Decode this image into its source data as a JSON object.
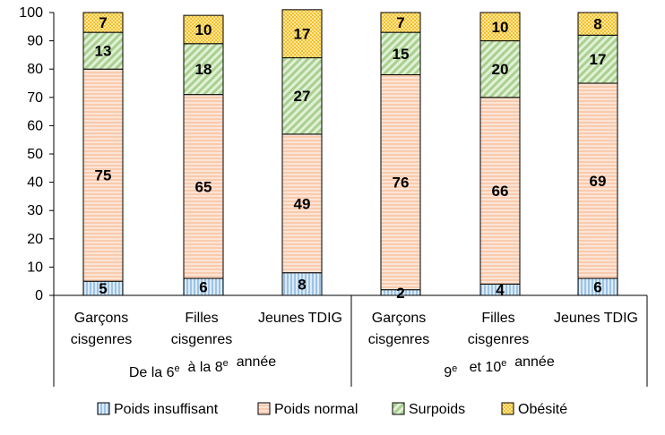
{
  "chart_data": {
    "type": "bar",
    "stacked": true,
    "ylim": [
      0,
      100
    ],
    "yticks": [
      0,
      10,
      20,
      30,
      40,
      50,
      60,
      70,
      80,
      90,
      100
    ],
    "grid": false,
    "legend_position": "bottom",
    "categories": [
      [
        "Garçons",
        "cisgenres"
      ],
      [
        "Filles",
        "cisgenres"
      ],
      [
        "Jeunes TDIG"
      ],
      [
        "Garçons",
        "cisgenres"
      ],
      [
        "Filles",
        "cisgenres"
      ],
      [
        "Jeunes TDIG"
      ]
    ],
    "groups": [
      {
        "label": "De la 6e à la 8e année",
        "parts": [
          [
            "De la 6",
            ""
          ],
          [
            "e",
            "sup"
          ],
          [
            "  à la 8",
            ""
          ],
          [
            "e",
            "sup"
          ],
          [
            "  année",
            ""
          ]
        ],
        "span": [
          0,
          2
        ]
      },
      {
        "label": "9e et 10e année",
        "parts": [
          [
            "9",
            ""
          ],
          [
            "e",
            "sup"
          ],
          [
            "   et 10",
            ""
          ],
          [
            "e",
            "sup"
          ],
          [
            "  année",
            ""
          ]
        ],
        "span": [
          3,
          5
        ]
      }
    ],
    "series": [
      {
        "name": "Poids insuffisant",
        "values": [
          5,
          6,
          8,
          2,
          4,
          6
        ],
        "color": "#bdd7ee",
        "pattern": "vstripes",
        "stroke": "#8fb4d9"
      },
      {
        "name": "Poids normal",
        "values": [
          75,
          65,
          49,
          76,
          66,
          69
        ],
        "color": "#f8cbad",
        "pattern": "hstripes",
        "stroke": "#f4b183"
      },
      {
        "name": "Surpoids",
        "values": [
          13,
          18,
          27,
          15,
          20,
          17
        ],
        "color": "#c5e0b4",
        "pattern": "diagonal",
        "stroke": "#a9d18e"
      },
      {
        "name": "Obésité",
        "values": [
          7,
          10,
          17,
          7,
          10,
          8
        ],
        "color": "#ffd966",
        "pattern": "dots",
        "stroke": "#f2c12e"
      }
    ]
  }
}
